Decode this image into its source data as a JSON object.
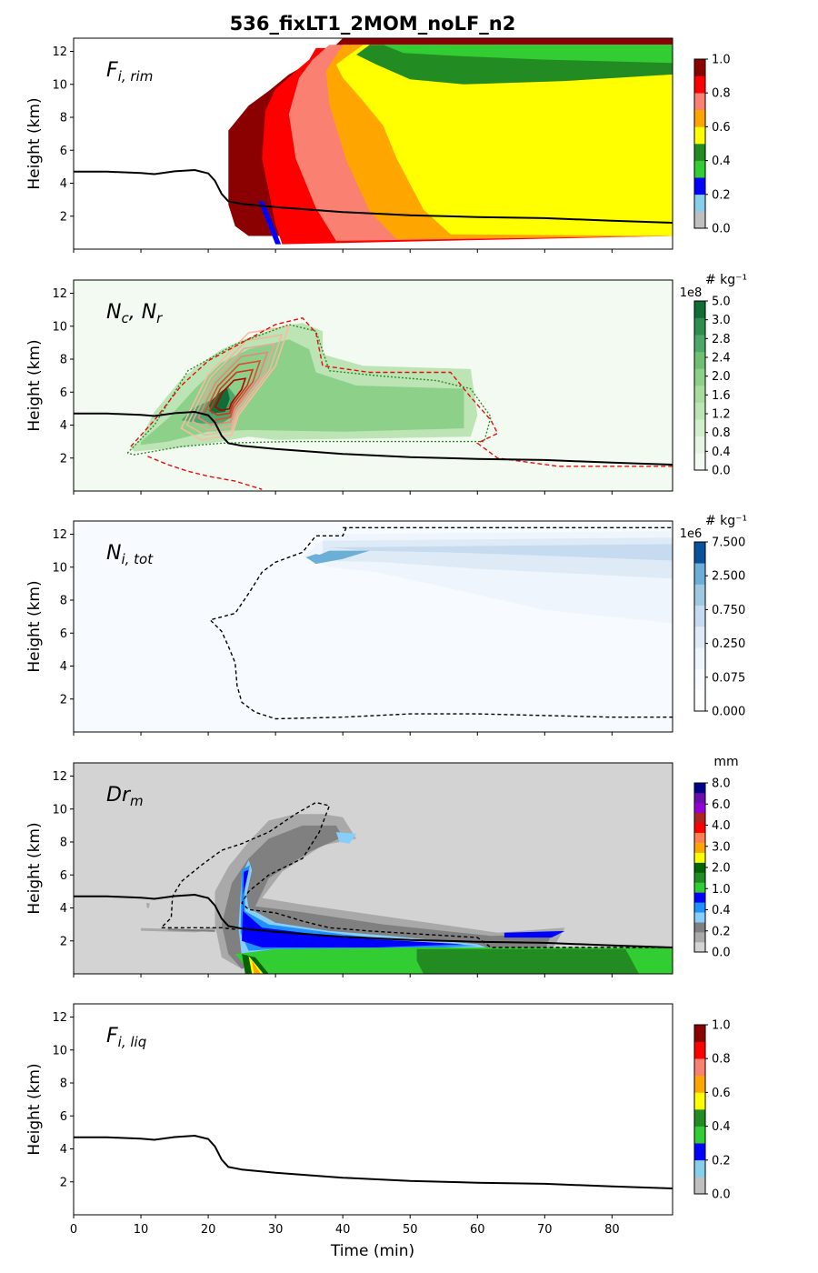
{
  "chart_data": {
    "title": "536_fixLT1_2MOM_noLF_n2",
    "type": "heatmap",
    "xlabel": "Time (min)",
    "xlim": [
      0,
      89
    ],
    "xticks": [
      "0",
      "10",
      "20",
      "30",
      "40",
      "50",
      "60",
      "70",
      "80"
    ],
    "ylabel": "Height (km)",
    "ylim": [
      0,
      12.8
    ],
    "yticks": [
      "2",
      "4",
      "6",
      "8",
      "10",
      "12"
    ],
    "line_series": {
      "times": [
        0,
        5,
        10,
        12,
        15,
        18,
        20,
        21,
        22,
        23,
        25,
        30,
        40,
        50,
        60,
        70,
        80,
        89
      ],
      "heights": [
        4.7,
        4.7,
        4.62,
        4.55,
        4.72,
        4.8,
        4.6,
        4.15,
        3.35,
        2.9,
        2.75,
        2.55,
        2.25,
        2.05,
        1.95,
        1.88,
        1.72,
        1.6
      ]
    },
    "panels": [
      {
        "name": "Fi,rim",
        "label_main": "F",
        "label_sub": "i, rim",
        "colorbar": {
          "unit": "",
          "multiplier": "",
          "ticks": [
            "0.0",
            "0.2",
            "0.4",
            "0.6",
            "0.8",
            "1.0"
          ],
          "colors": [
            "#bfbfbf",
            "#87ceeb",
            "#0000ff",
            "#32cd32",
            "#228b22",
            "#ffff00",
            "#ffa500",
            "#fa8072",
            "#ff0000",
            "#8b0000"
          ]
        }
      },
      {
        "name": "Nc,Nr",
        "label_main": "N",
        "label_sub": "c",
        "label_main2": "N",
        "label_sub2": "r",
        "colorbar": {
          "unit": "# kg⁻¹",
          "multiplier": "1e8",
          "ticks": [
            "0.0",
            "0.4",
            "0.8",
            "1.2",
            "1.6",
            "2.0",
            "2.4",
            "2.8",
            "3.0",
            "5.0"
          ],
          "colors": [
            "#f3faf2",
            "#e6f5e1",
            "#d2edcb",
            "#bde4b5",
            "#a8dc9f",
            "#8dd08a",
            "#6fbf73",
            "#4aa96a",
            "#2d8f4e",
            "#116d36"
          ]
        }
      },
      {
        "name": "Ni,tot",
        "label_main": "N",
        "label_sub": "i, tot",
        "colorbar": {
          "unit": "# kg⁻¹",
          "multiplier": "1e6",
          "ticks": [
            "0.000",
            "0.075",
            "0.250",
            "0.750",
            "2.500",
            "7.500"
          ],
          "colors": [
            "#ffffff",
            "#f7fbff",
            "#eef5fd",
            "#deebf7",
            "#c6dbef",
            "#9ecae1",
            "#6baed6",
            "#08519c"
          ]
        }
      },
      {
        "name": "Drm",
        "label_main": "Dr",
        "label_sub": "m",
        "colorbar": {
          "unit": "mm",
          "multiplier": "",
          "ticks": [
            "0.0",
            "0.2",
            "0.4",
            "1.0",
            "2.0",
            "3.0",
            "4.0",
            "6.0",
            "8.0"
          ],
          "colors": [
            "#d3d3d3",
            "#a9a9a9",
            "#808080",
            "#87cefa",
            "#1e90ff",
            "#0000ff",
            "#32cd32",
            "#228b22",
            "#006400",
            "#ffff00",
            "#ffa500",
            "#ff7f50",
            "#ff0000",
            "#b22222",
            "#9400d3",
            "#6a0dad",
            "#00008b"
          ]
        }
      },
      {
        "name": "Fi,liq",
        "label_main": "F",
        "label_sub": "i, liq",
        "colorbar": {
          "unit": "",
          "multiplier": "",
          "ticks": [
            "0.0",
            "0.2",
            "0.4",
            "0.6",
            "0.8",
            "1.0"
          ],
          "colors": [
            "#bfbfbf",
            "#87ceeb",
            "#0000ff",
            "#32cd32",
            "#228b22",
            "#ffff00",
            "#ffa500",
            "#fa8072",
            "#ff0000",
            "#8b0000"
          ]
        }
      }
    ]
  }
}
